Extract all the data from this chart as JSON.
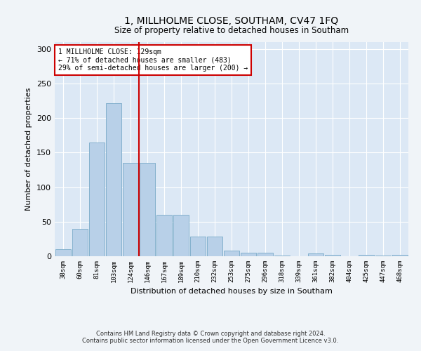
{
  "title": "1, MILLHOLME CLOSE, SOUTHAM, CV47 1FQ",
  "subtitle": "Size of property relative to detached houses in Southam",
  "xlabel": "Distribution of detached houses by size in Southam",
  "ylabel": "Number of detached properties",
  "categories": [
    "38sqm",
    "60sqm",
    "81sqm",
    "103sqm",
    "124sqm",
    "146sqm",
    "167sqm",
    "189sqm",
    "210sqm",
    "232sqm",
    "253sqm",
    "275sqm",
    "296sqm",
    "318sqm",
    "339sqm",
    "361sqm",
    "382sqm",
    "404sqm",
    "425sqm",
    "447sqm",
    "468sqm"
  ],
  "values": [
    10,
    40,
    165,
    222,
    135,
    135,
    60,
    60,
    28,
    28,
    8,
    5,
    5,
    1,
    0,
    4,
    2,
    0,
    2,
    1,
    2
  ],
  "bar_color": "#b8d0e8",
  "bar_edge_color": "#7aaac8",
  "vline_color": "#cc0000",
  "annotation_text": "1 MILLHOLME CLOSE: 129sqm\n← 71% of detached houses are smaller (483)\n29% of semi-detached houses are larger (200) →",
  "annotation_box_color": "#ffffff",
  "annotation_box_edge_color": "#cc0000",
  "ylim": [
    0,
    310
  ],
  "yticks": [
    0,
    50,
    100,
    150,
    200,
    250,
    300
  ],
  "bg_color": "#dce8f5",
  "fig_color": "#f0f4f8",
  "footer_line1": "Contains HM Land Registry data © Crown copyright and database right 2024.",
  "footer_line2": "Contains public sector information licensed under the Open Government Licence v3.0."
}
